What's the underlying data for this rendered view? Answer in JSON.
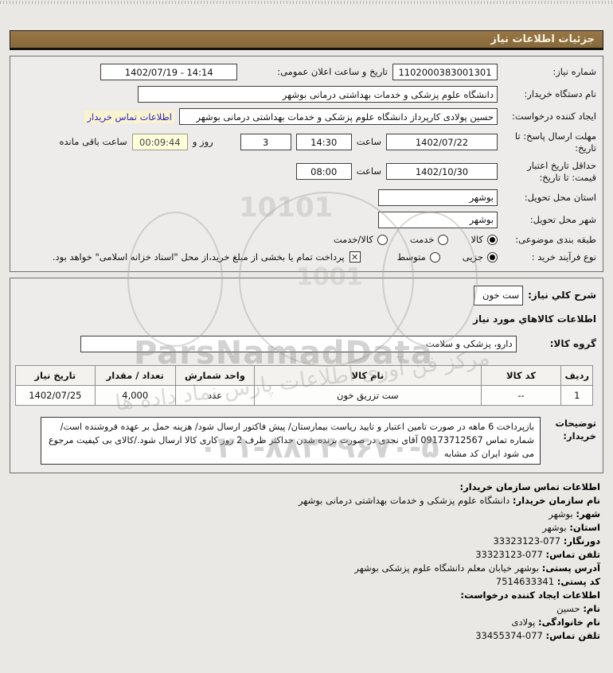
{
  "page": {
    "title": "جزئیات اطلاعات نیاز"
  },
  "colors": {
    "header_brown": "#8d6f40",
    "link_blue": "#2a23c7",
    "countdown_bg": "#ffffdc",
    "page_bg": "#e9e8e5"
  },
  "box1": {
    "need_number": {
      "label": "شماره نیاز:",
      "value": "1102000383001301"
    },
    "announce": {
      "label": "تاریخ و ساعت اعلان عمومی:",
      "value": "1402/07/19 - 14:14"
    },
    "buyer_org": {
      "label": "نام دستگاه خریدار:",
      "value": "دانشگاه علوم پزشکی و خدمات بهداشتی درمانی بوشهر"
    },
    "creator": {
      "label": "ایجاد کننده درخواست:",
      "value": "حسین پولادی کارپرداز دانشگاه علوم پزشکی و خدمات بهداشتی درمانی بوشهر",
      "link": "اطلاعات تماس خریدار"
    },
    "deadline": {
      "label": "مهلت ارسال پاسخ: تا تاریخ:",
      "date": "1402/07/22",
      "hour_label": "ساعت",
      "time": "14:30",
      "days": "3",
      "days_label": "روز و",
      "countdown": "00:09:44",
      "remain_label": "ساعت باقی مانده"
    },
    "validity": {
      "label": "حداقل تاریخ اعتبار قیمت: تا تاریخ:",
      "date": "1402/10/30",
      "hour_label": "ساعت",
      "time": "08:00"
    },
    "province": {
      "label": "استان محل تحویل:",
      "value": "بوشهر"
    },
    "city": {
      "label": "شهر محل تحویل:",
      "value": "بوشهر"
    },
    "classification": {
      "label": "طبقه بندی موضوعی:",
      "options": [
        {
          "label": "کالا",
          "selected": true
        },
        {
          "label": "خدمت",
          "selected": false
        },
        {
          "label": "کالا/خدمت",
          "selected": false
        }
      ]
    },
    "process": {
      "label": "نوع فرآیند خرید :",
      "options": [
        {
          "label": "جزیی",
          "selected": true
        },
        {
          "label": "متوسط",
          "selected": false
        }
      ],
      "checkbox_checked": true,
      "checkbox_label": "پرداخت تمام یا بخشی از مبلغ خرید،از محل \"اسناد خزانه اسلامی\" خواهد بود."
    }
  },
  "box2": {
    "desc_label": "شرح کلي نیاز:",
    "desc_value": "ست خون",
    "goods_heading": "اطلاعات کالاهاي مورد نیاز",
    "group_label": "گروه کالا:",
    "group_value": "دارو، پزشکی و سلامت",
    "table": {
      "headers": [
        "ردیف",
        "کد کالا",
        "نام کالا",
        "واحد شمارش",
        "تعداد / مقدار",
        "تاریخ نیاز"
      ],
      "rows": [
        [
          "1",
          "--",
          "ست تزریق خون",
          "عدد",
          "4,000",
          "1402/07/25"
        ]
      ]
    },
    "notes_label": "توضیحات خریدار:",
    "notes_text": "بازپرداخت 6 ماهه در صورت تامین اعتبار و تایید ریاست بیمارستان/ پیش فاکتور ارسال شود/ هزینه حمل بر عهده فروشنده است/ شماره تماس 09173712567 آقای نجدی در صورت برنده شدن حداکثر ظرف 2 روز کاری کالا ارسال شود./کالای بی کیفیت مرجوع می شود ایران کد مشابه"
  },
  "contact": {
    "lines": [
      {
        "label": "اطلاعات تماس سازمان خریدار:",
        "value": ""
      },
      {
        "label": "نام سازمان خریدار:",
        "value": "دانشگاه علوم پزشکی و خدمات بهداشتی درمانی بوشهر"
      },
      {
        "label": "شهر:",
        "value": "بوشهر"
      },
      {
        "label": "استان:",
        "value": "بوشهر"
      },
      {
        "label": "دورنگار:",
        "value": "33323123-077"
      },
      {
        "label": "تلفن تماس:",
        "value": "33323123-077"
      },
      {
        "label": "آدرس پستی:",
        "value": "بوشهر خیابان معلم دانشگاه علوم پزشکی بوشهر"
      },
      {
        "label": "کد پستی:",
        "value": "7514633341"
      },
      {
        "label": "اطلاعات ایجاد کننده درخواست:",
        "value": ""
      },
      {
        "label": "نام:",
        "value": "حسین"
      },
      {
        "label": "نام خانوادگی:",
        "value": "پولادی"
      },
      {
        "label": "تلفن تماس:",
        "value": "33455374-077"
      }
    ]
  },
  "watermarks": {
    "brand": "ParsNamadData",
    "phone": "۰۲۱-۸۸۳۴۹۶۷۰-۵",
    "script": "مرکز فن آوری اطلاعات پارس نماد داده ها",
    "digits1": "10101",
    "digits2": "1001"
  }
}
